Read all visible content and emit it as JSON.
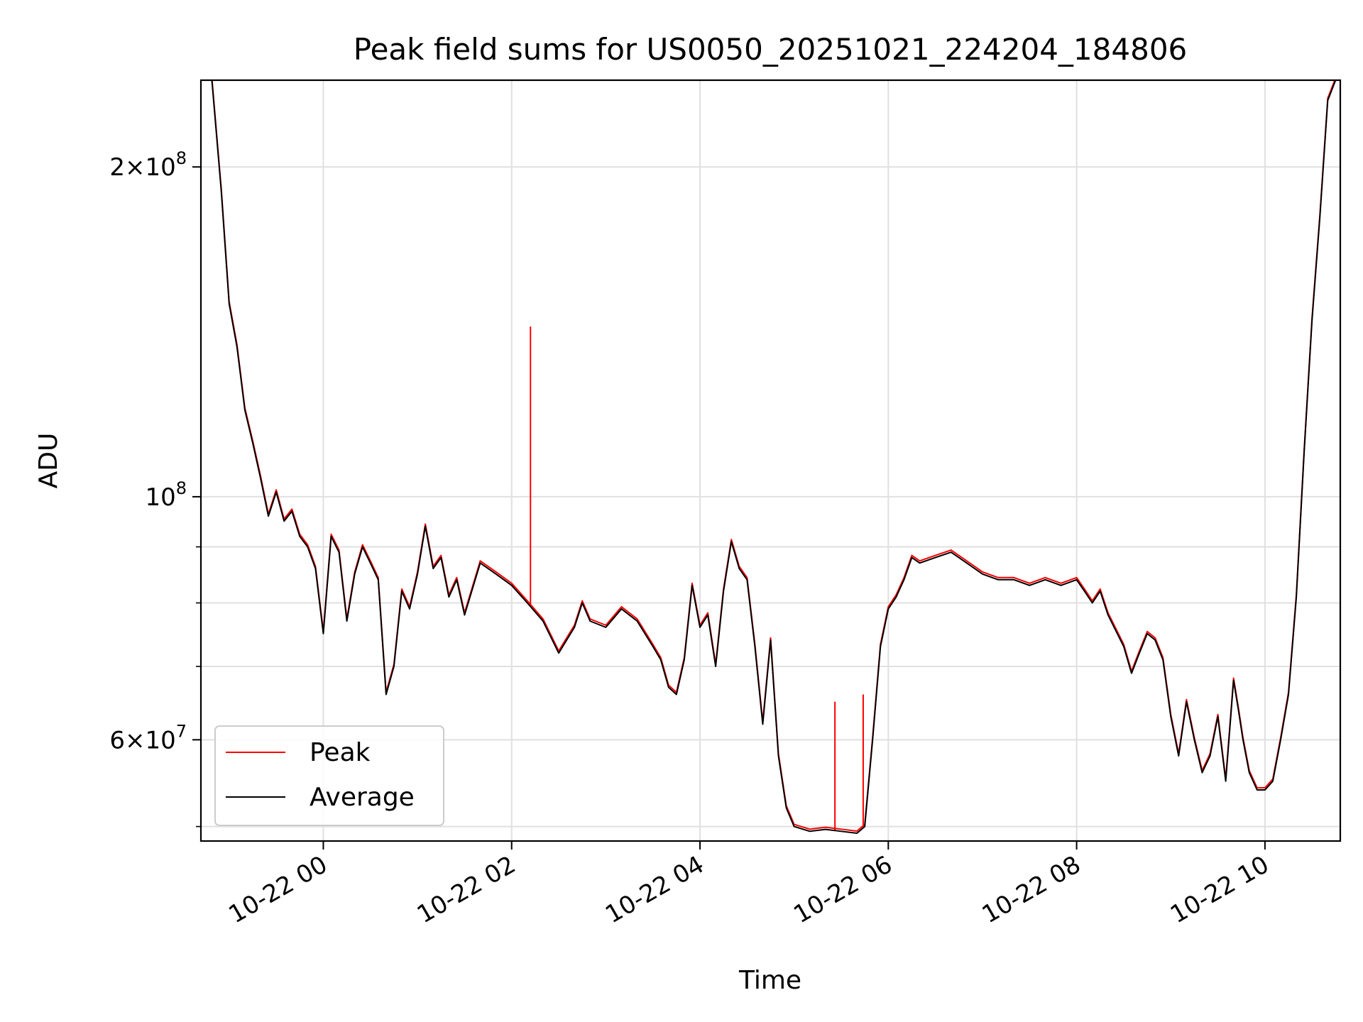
{
  "chart_data": {
    "type": "line",
    "title": "Peak field sums for US0050_20251021_224204_184806",
    "xlabel": "Time",
    "ylabel": "ADU",
    "yscale": "log",
    "grid": true,
    "legend_placement": "lower-left",
    "xlim": [
      "2025-10-21 22:42",
      "2025-10-22 10:48"
    ],
    "ylim": [
      48500000,
      240000000
    ],
    "x_ticks": [
      {
        "value": "2025-10-22 00:00",
        "label": "10-22 00"
      },
      {
        "value": "2025-10-22 02:00",
        "label": "10-22 02"
      },
      {
        "value": "2025-10-22 04:00",
        "label": "10-22 04"
      },
      {
        "value": "2025-10-22 06:00",
        "label": "10-22 06"
      },
      {
        "value": "2025-10-22 08:00",
        "label": "10-22 08"
      },
      {
        "value": "2025-10-22 10:00",
        "label": "10-22 10"
      }
    ],
    "y_major_ticks": [
      {
        "value": 200000000,
        "mantissa": "2",
        "exponent": "8"
      },
      {
        "value": 100000000,
        "mantissa": "",
        "exponent": "8"
      },
      {
        "value": 60000000,
        "mantissa": "6",
        "exponent": "7"
      }
    ],
    "y_minor_ticks": [
      50000000,
      70000000,
      80000000,
      90000000
    ],
    "series": [
      {
        "name": "Peak",
        "color": "#ff0000",
        "spikes": [
          {
            "x": "2025-10-22 02:12",
            "y": 143000000
          },
          {
            "x": "2025-10-22 05:26",
            "y": 65000000
          },
          {
            "x": "2025-10-22 05:44",
            "y": 66000000
          }
        ]
      },
      {
        "name": "Average",
        "color": "#000000",
        "x": [
          "2025-10-21 22:42",
          "2025-10-21 22:49",
          "2025-10-21 22:55",
          "2025-10-21 23:00",
          "2025-10-21 23:05",
          "2025-10-21 23:10",
          "2025-10-21 23:15",
          "2025-10-21 23:20",
          "2025-10-21 23:25",
          "2025-10-21 23:30",
          "2025-10-21 23:35",
          "2025-10-21 23:40",
          "2025-10-21 23:45",
          "2025-10-21 23:50",
          "2025-10-21 23:55",
          "2025-10-22 00:00",
          "2025-10-22 00:05",
          "2025-10-22 00:10",
          "2025-10-22 00:15",
          "2025-10-22 00:20",
          "2025-10-22 00:25",
          "2025-10-22 00:30",
          "2025-10-22 00:35",
          "2025-10-22 00:40",
          "2025-10-22 00:45",
          "2025-10-22 00:50",
          "2025-10-22 00:55",
          "2025-10-22 01:00",
          "2025-10-22 01:05",
          "2025-10-22 01:10",
          "2025-10-22 01:15",
          "2025-10-22 01:20",
          "2025-10-22 01:25",
          "2025-10-22 01:30",
          "2025-10-22 01:40",
          "2025-10-22 01:50",
          "2025-10-22 02:00",
          "2025-10-22 02:10",
          "2025-10-22 02:20",
          "2025-10-22 02:30",
          "2025-10-22 02:40",
          "2025-10-22 02:45",
          "2025-10-22 02:50",
          "2025-10-22 03:00",
          "2025-10-22 03:10",
          "2025-10-22 03:20",
          "2025-10-22 03:30",
          "2025-10-22 03:35",
          "2025-10-22 03:40",
          "2025-10-22 03:45",
          "2025-10-22 03:50",
          "2025-10-22 03:55",
          "2025-10-22 04:00",
          "2025-10-22 04:05",
          "2025-10-22 04:10",
          "2025-10-22 04:15",
          "2025-10-22 04:20",
          "2025-10-22 04:25",
          "2025-10-22 04:30",
          "2025-10-22 04:35",
          "2025-10-22 04:40",
          "2025-10-22 04:45",
          "2025-10-22 04:50",
          "2025-10-22 04:55",
          "2025-10-22 05:00",
          "2025-10-22 05:10",
          "2025-10-22 05:20",
          "2025-10-22 05:30",
          "2025-10-22 05:40",
          "2025-10-22 05:45",
          "2025-10-22 05:50",
          "2025-10-22 05:55",
          "2025-10-22 06:00",
          "2025-10-22 06:05",
          "2025-10-22 06:10",
          "2025-10-22 06:15",
          "2025-10-22 06:20",
          "2025-10-22 06:30",
          "2025-10-22 06:40",
          "2025-10-22 06:50",
          "2025-10-22 07:00",
          "2025-10-22 07:10",
          "2025-10-22 07:20",
          "2025-10-22 07:30",
          "2025-10-22 07:40",
          "2025-10-22 07:50",
          "2025-10-22 08:00",
          "2025-10-22 08:05",
          "2025-10-22 08:10",
          "2025-10-22 08:15",
          "2025-10-22 08:20",
          "2025-10-22 08:30",
          "2025-10-22 08:35",
          "2025-10-22 08:40",
          "2025-10-22 08:45",
          "2025-10-22 08:50",
          "2025-10-22 08:55",
          "2025-10-22 09:00",
          "2025-10-22 09:05",
          "2025-10-22 09:10",
          "2025-10-22 09:15",
          "2025-10-22 09:20",
          "2025-10-22 09:25",
          "2025-10-22 09:30",
          "2025-10-22 09:35",
          "2025-10-22 09:40",
          "2025-10-22 09:43",
          "2025-10-22 09:46",
          "2025-10-22 09:50",
          "2025-10-22 09:55",
          "2025-10-22 10:00",
          "2025-10-22 10:05",
          "2025-10-22 10:10",
          "2025-10-22 10:15",
          "2025-10-22 10:20",
          "2025-10-22 10:25",
          "2025-10-22 10:30",
          "2025-10-22 10:35",
          "2025-10-22 10:40",
          "2025-10-22 10:45",
          "2025-10-22 10:48"
        ],
        "values": [
          240000000,
          240000000,
          190000000,
          150000000,
          137000000,
          120000000,
          112000000,
          104000000,
          96000000,
          101000000,
          95000000,
          97000000,
          92000000,
          90000000,
          86000000,
          75000000,
          92000000,
          89000000,
          77000000,
          85000000,
          90000000,
          87000000,
          84000000,
          66000000,
          70000000,
          82000000,
          79000000,
          85000000,
          94000000,
          86000000,
          88000000,
          81000000,
          84000000,
          78000000,
          87000000,
          85000000,
          83000000,
          80000000,
          77000000,
          72000000,
          76000000,
          80000000,
          77000000,
          76000000,
          79000000,
          77000000,
          73000000,
          71000000,
          67000000,
          66000000,
          71000000,
          83000000,
          76000000,
          78000000,
          70000000,
          82000000,
          91000000,
          86000000,
          84000000,
          73000000,
          62000000,
          74000000,
          58000000,
          52000000,
          50000000,
          49500000,
          49700000,
          49500000,
          49300000,
          50000000,
          60000000,
          73000000,
          79000000,
          81000000,
          84000000,
          88000000,
          87000000,
          88000000,
          89000000,
          87000000,
          85000000,
          84000000,
          84000000,
          83000000,
          84000000,
          83000000,
          84000000,
          82000000,
          80000000,
          82000000,
          78000000,
          73000000,
          69000000,
          72000000,
          75000000,
          74000000,
          71000000,
          63000000,
          58000000,
          65000000,
          60000000,
          56000000,
          58000000,
          63000000,
          55000000,
          68000000,
          64000000,
          60000000,
          56000000,
          54000000,
          54000000,
          55000000,
          60000000,
          66000000,
          81000000,
          110000000,
          145000000,
          180000000,
          230000000,
          240000000,
          240000000
        ]
      }
    ]
  }
}
